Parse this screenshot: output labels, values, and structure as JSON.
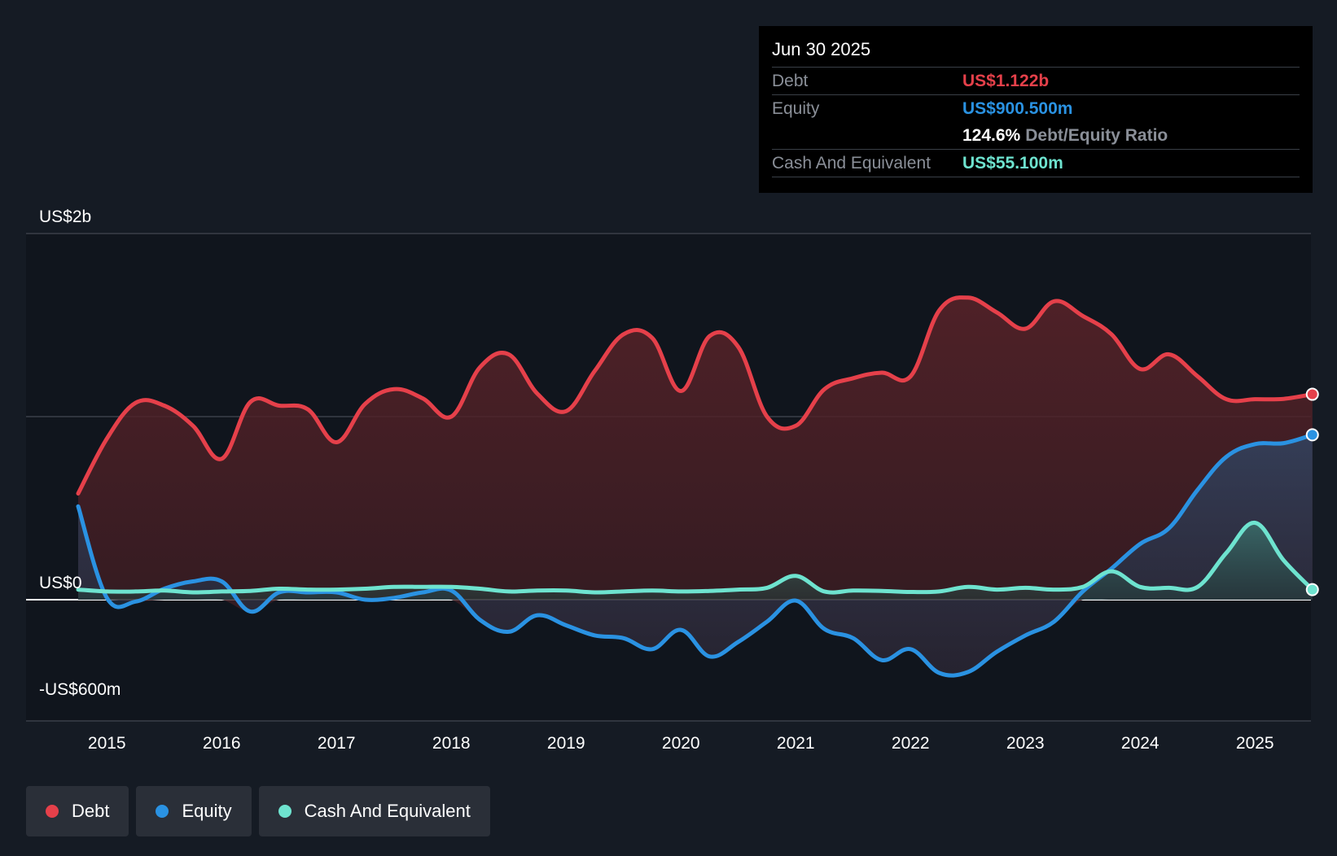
{
  "tooltip": {
    "date": "Jun 30 2025",
    "debt_label": "Debt",
    "debt_value": "US$1.122b",
    "equity_label": "Equity",
    "equity_value": "US$900.500m",
    "ratio_value": "124.6%",
    "ratio_label": "Debt/Equity Ratio",
    "cash_label": "Cash And Equivalent",
    "cash_value": "US$55.100m"
  },
  "legend": [
    {
      "label": "Debt",
      "color": "#e5404a"
    },
    {
      "label": "Equity",
      "color": "#2a92e2"
    },
    {
      "label": "Cash And Equivalent",
      "color": "#6ee3cf"
    }
  ],
  "chart_data": {
    "type": "area",
    "title": "",
    "xlabel": "",
    "ylabel": "",
    "x_ticks": [
      "2015",
      "2016",
      "2017",
      "2018",
      "2019",
      "2020",
      "2021",
      "2022",
      "2023",
      "2024",
      "2025"
    ],
    "y_tick_labels": [
      "US$2b",
      "US$0",
      "-US$600m"
    ],
    "ylim": [
      -600,
      2000
    ],
    "xlim": [
      2014.75,
      2025.5
    ],
    "units": "US$m",
    "legend_position": "bottom-left",
    "colors": {
      "debt": "#e5404a",
      "equity": "#2a92e2",
      "cash": "#6ee3cf"
    },
    "series": [
      {
        "name": "Debt",
        "x": [
          2014.75,
          2015.0,
          2015.25,
          2015.5,
          2015.75,
          2016.0,
          2016.25,
          2016.5,
          2016.75,
          2017.0,
          2017.25,
          2017.5,
          2017.75,
          2018.0,
          2018.25,
          2018.5,
          2018.75,
          2019.0,
          2019.25,
          2019.5,
          2019.75,
          2020.0,
          2020.25,
          2020.5,
          2020.75,
          2021.0,
          2021.25,
          2021.5,
          2021.75,
          2022.0,
          2022.25,
          2022.5,
          2022.75,
          2023.0,
          2023.25,
          2023.5,
          2023.75,
          2024.0,
          2024.25,
          2024.5,
          2024.75,
          2025.0,
          2025.25,
          2025.5
        ],
        "values": [
          580,
          880,
          1075,
          1060,
          950,
          770,
          1080,
          1060,
          1040,
          860,
          1070,
          1150,
          1100,
          1000,
          1270,
          1340,
          1125,
          1030,
          1250,
          1450,
          1430,
          1140,
          1440,
          1380,
          1000,
          950,
          1150,
          1210,
          1240,
          1220,
          1580,
          1650,
          1570,
          1480,
          1630,
          1550,
          1450,
          1260,
          1340,
          1220,
          1095,
          1095,
          1097,
          1122
        ]
      },
      {
        "name": "Equity",
        "x": [
          2014.75,
          2015.0,
          2015.25,
          2015.5,
          2015.75,
          2016.0,
          2016.25,
          2016.5,
          2016.75,
          2017.0,
          2017.25,
          2017.5,
          2017.75,
          2018.0,
          2018.25,
          2018.5,
          2018.75,
          2019.0,
          2019.25,
          2019.5,
          2019.75,
          2020.0,
          2020.25,
          2020.5,
          2020.75,
          2021.0,
          2021.25,
          2021.5,
          2021.75,
          2022.0,
          2022.25,
          2022.5,
          2022.75,
          2023.0,
          2023.25,
          2023.5,
          2023.75,
          2024.0,
          2024.25,
          2024.5,
          2024.75,
          2025.0,
          2025.25,
          2025.5
        ],
        "values": [
          510,
          10,
          -10,
          60,
          100,
          100,
          -65,
          40,
          40,
          40,
          0,
          10,
          40,
          50,
          -110,
          -175,
          -85,
          -140,
          -195,
          -210,
          -270,
          -165,
          -310,
          -230,
          -120,
          -5,
          -160,
          -210,
          -330,
          -270,
          -400,
          -395,
          -285,
          -195,
          -120,
          45,
          170,
          305,
          390,
          600,
          780,
          850,
          855,
          900.5
        ]
      },
      {
        "name": "Cash And Equivalent",
        "x": [
          2014.75,
          2015.0,
          2015.25,
          2015.5,
          2015.75,
          2016.0,
          2016.25,
          2016.5,
          2016.75,
          2017.0,
          2017.25,
          2017.5,
          2017.75,
          2018.0,
          2018.25,
          2018.5,
          2018.75,
          2019.0,
          2019.25,
          2019.5,
          2019.75,
          2020.0,
          2020.25,
          2020.5,
          2020.75,
          2021.0,
          2021.25,
          2021.5,
          2021.75,
          2022.0,
          2022.25,
          2022.5,
          2022.75,
          2023.0,
          2023.25,
          2023.5,
          2023.75,
          2024.0,
          2024.25,
          2024.5,
          2024.75,
          2025.0,
          2025.25,
          2025.5
        ],
        "values": [
          55,
          45,
          45,
          50,
          40,
          45,
          48,
          60,
          55,
          55,
          60,
          70,
          70,
          70,
          60,
          45,
          50,
          50,
          40,
          45,
          50,
          45,
          48,
          55,
          65,
          130,
          45,
          50,
          48,
          42,
          45,
          70,
          55,
          65,
          55,
          70,
          155,
          70,
          65,
          70,
          255,
          420,
          215,
          55.1
        ]
      }
    ]
  }
}
